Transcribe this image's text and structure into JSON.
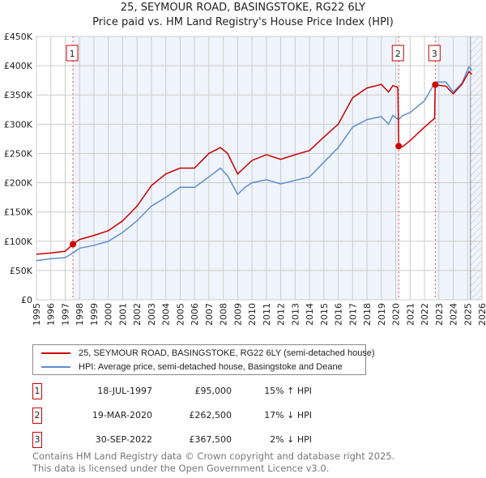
{
  "title_line1": "25, SEYMOUR ROAD, BASINGSTOKE, RG22 6LY",
  "title_line2": "Price paid vs. HM Land Registry's House Price Index (HPI)",
  "chart_data": {
    "type": "line",
    "title": "25, SEYMOUR ROAD, BASINGSTOKE, RG22 6LY - Price paid vs. HM Land Registry's House Price Index (HPI)",
    "xlim": [
      1995,
      2026
    ],
    "ylim": [
      0,
      450000
    ],
    "x_ticks": [
      "1995",
      "1996",
      "1997",
      "1998",
      "1999",
      "2000",
      "2001",
      "2002",
      "2003",
      "2004",
      "2005",
      "2006",
      "2007",
      "2008",
      "2009",
      "2010",
      "2011",
      "2012",
      "2013",
      "2014",
      "2015",
      "2016",
      "2017",
      "2018",
      "2019",
      "2020",
      "2021",
      "2022",
      "2023",
      "2024",
      "2025",
      "2026"
    ],
    "y_ticks": [
      {
        "v": 0,
        "label": "£0"
      },
      {
        "v": 50000,
        "label": "£50K"
      },
      {
        "v": 100000,
        "label": "£100K"
      },
      {
        "v": 150000,
        "label": "£150K"
      },
      {
        "v": 200000,
        "label": "£200K"
      },
      {
        "v": 250000,
        "label": "£250K"
      },
      {
        "v": 300000,
        "label": "£300K"
      },
      {
        "v": 350000,
        "label": "£350K"
      },
      {
        "v": 400000,
        "label": "£400K"
      },
      {
        "v": 450000,
        "label": "£450K"
      }
    ],
    "grid": true,
    "series": [
      {
        "name": "25, SEYMOUR ROAD, BASINGSTOKE, RG22 6LY (semi-detached house)",
        "color": "#cc0000",
        "x": [
          1995,
          1996,
          1997,
          1997.54,
          1998,
          1999,
          2000,
          2001,
          2002,
          2003,
          2004,
          2005,
          2006,
          2007,
          2007.8,
          2008.3,
          2009,
          2009.3,
          2010,
          2011,
          2012,
          2013,
          2014,
          2015,
          2016,
          2017,
          2018,
          2019,
          2019.5,
          2019.8,
          2020.15,
          2020.21,
          2020.5,
          2021,
          2022,
          2022.7,
          2022.75,
          2023.5,
          2024,
          2024.6,
          2025.1,
          2025.3
        ],
        "y": [
          78000,
          80000,
          83000,
          95000,
          103000,
          110000,
          118000,
          135000,
          160000,
          195000,
          215000,
          225000,
          225000,
          250000,
          260000,
          250000,
          215000,
          222000,
          238000,
          248000,
          240000,
          248000,
          255000,
          278000,
          300000,
          345000,
          362000,
          368000,
          355000,
          366000,
          363000,
          262500,
          262000,
          272000,
          295000,
          310000,
          367500,
          365000,
          352000,
          368000,
          390000,
          385000
        ]
      },
      {
        "name": "HPI: Average price, semi-detached house, Basingstoke and Deane",
        "color": "#5b8fd0",
        "x": [
          1995,
          1996,
          1997,
          1997.54,
          1998,
          1999,
          2000,
          2001,
          2002,
          2003,
          2004,
          2005,
          2006,
          2007,
          2007.8,
          2008.3,
          2009,
          2009.5,
          2010,
          2011,
          2012,
          2013,
          2014,
          2015,
          2016,
          2017,
          2018,
          2019,
          2019.5,
          2019.8,
          2020.2,
          2020.5,
          2021,
          2022,
          2022.75,
          2023.5,
          2024,
          2024.6,
          2025.1,
          2025.3
        ],
        "y": [
          67000,
          70000,
          72000,
          80000,
          88000,
          93000,
          100000,
          115000,
          135000,
          160000,
          175000,
          192000,
          192000,
          210000,
          225000,
          212000,
          180000,
          192000,
          200000,
          205000,
          198000,
          204000,
          210000,
          235000,
          260000,
          295000,
          308000,
          313000,
          300000,
          315000,
          308000,
          315000,
          320000,
          340000,
          372000,
          372000,
          355000,
          370000,
          398000,
          392000
        ]
      }
    ],
    "sales": [
      {
        "id": "1",
        "x": 1997.54,
        "y": 95000,
        "date": "18-JUL-1997",
        "price": "£95,000",
        "hpi": "15% ↑ HPI"
      },
      {
        "id": "2",
        "x": 2020.21,
        "y": 262500,
        "date": "19-MAR-2020",
        "price": "£262,500",
        "hpi": "17% ↓ HPI"
      },
      {
        "id": "3",
        "x": 2022.75,
        "y": 367500,
        "date": "30-SEP-2022",
        "price": "£367,500",
        "hpi": "2% ↓ HPI"
      }
    ],
    "forecast_from": 2025.2,
    "legend_position": "below"
  },
  "legend": {
    "property": "25, SEYMOUR ROAD, BASINGSTOKE, RG22 6LY (semi-detached house)",
    "hpi": "HPI: Average price, semi-detached house, Basingstoke and Deane"
  },
  "footer": {
    "line1": "Contains HM Land Registry data © Crown copyright and database right 2025.",
    "line2": "This data is licensed under the Open Government Licence v3.0."
  }
}
